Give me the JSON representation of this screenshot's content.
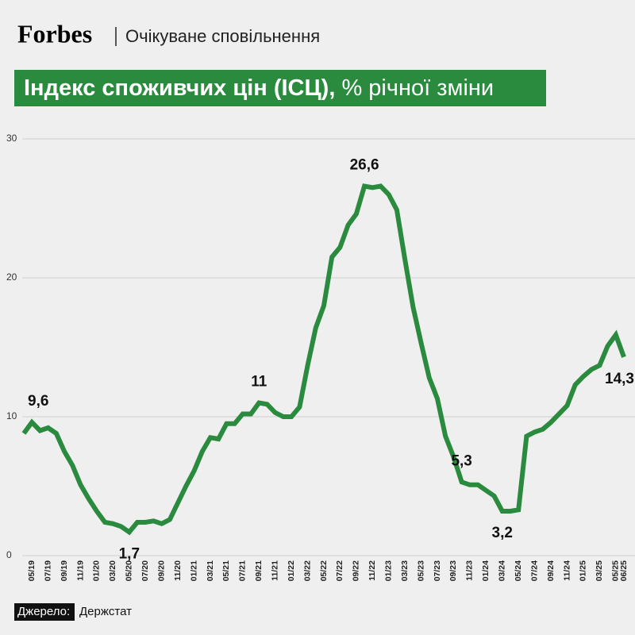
{
  "header": {
    "brand": "Forbes",
    "section": "Очікуване сповільнення"
  },
  "chart_data": {
    "type": "line",
    "title": "Індекс споживчих цін (ІСЦ),",
    "subtitle": "% річної зміни",
    "categories": [
      null,
      "05/19",
      null,
      "07/19",
      null,
      "09/19",
      null,
      "11/19",
      null,
      "01/20",
      null,
      "03/20",
      null,
      "05/20",
      null,
      "07/20",
      null,
      "09/20",
      null,
      "11/20",
      null,
      "01/21",
      null,
      "03/21",
      null,
      "05/21",
      null,
      "07/21",
      null,
      "09/21",
      null,
      "11/21",
      null,
      "01/22",
      null,
      "03/22",
      null,
      "05/22",
      null,
      "07/22",
      null,
      "09/22",
      null,
      "11/22",
      null,
      "01/23",
      null,
      "03/23",
      null,
      "05/23",
      null,
      "07/23",
      null,
      "09/23",
      null,
      "11/23",
      null,
      "01/24",
      null,
      "03/24",
      null,
      "05/24",
      null,
      "07/24",
      null,
      "09/24",
      null,
      "11/24",
      null,
      "01/25",
      null,
      "03/25",
      null,
      "05/25",
      "06/25"
    ],
    "series": [
      {
        "color": "#2a8a3e",
        "values": [
          8.8,
          9.6,
          9.0,
          9.2,
          8.8,
          7.5,
          6.5,
          5.1,
          4.1,
          3.2,
          2.4,
          2.3,
          2.1,
          1.7,
          2.4,
          2.4,
          2.5,
          2.3,
          2.6,
          3.8,
          5.0,
          6.1,
          7.5,
          8.5,
          8.4,
          9.5,
          9.5,
          10.2,
          10.2,
          11.0,
          10.9,
          10.3,
          10.0,
          10.0,
          10.7,
          13.7,
          16.4,
          18.0,
          21.5,
          22.2,
          23.8,
          24.6,
          26.6,
          26.5,
          26.6,
          26.0,
          24.9,
          21.3,
          17.9,
          15.3,
          12.8,
          11.3,
          8.6,
          7.1,
          5.3,
          5.1,
          5.1,
          4.7,
          4.3,
          3.2,
          3.2,
          3.3,
          8.6,
          8.9,
          9.1,
          9.6,
          10.2,
          10.8,
          12.3,
          12.9,
          13.4,
          13.7,
          15.1,
          15.9,
          14.3
        ],
        "value_labels": [
          null,
          "9,6",
          null,
          null,
          null,
          null,
          null,
          null,
          null,
          null,
          null,
          null,
          null,
          "1,7",
          null,
          null,
          null,
          null,
          null,
          null,
          null,
          null,
          null,
          null,
          null,
          null,
          null,
          null,
          null,
          "11",
          null,
          null,
          null,
          null,
          null,
          null,
          null,
          null,
          null,
          null,
          null,
          null,
          "26,6",
          null,
          null,
          null,
          null,
          null,
          null,
          null,
          null,
          null,
          null,
          null,
          "5,3",
          null,
          null,
          null,
          null,
          "3,2",
          null,
          null,
          null,
          null,
          null,
          null,
          null,
          null,
          null,
          null,
          null,
          null,
          null,
          null,
          "14,3"
        ]
      }
    ],
    "ylim": [
      0,
      30
    ],
    "yticks": [
      0,
      10,
      20,
      30
    ],
    "grid": true
  },
  "source": {
    "label": "Джерело:",
    "text": "Держстат"
  }
}
